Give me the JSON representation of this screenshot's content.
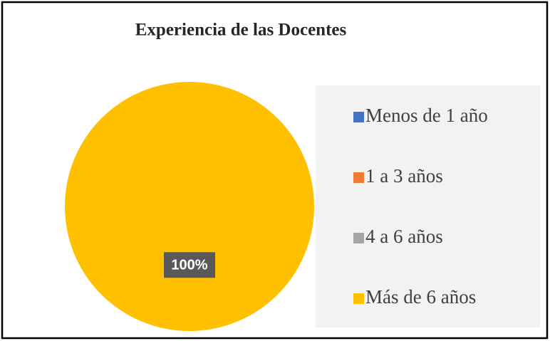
{
  "chart_data": {
    "type": "pie",
    "title": "Experiencia de las Docentes",
    "categories": [
      "Menos de 1 año",
      "1 a 3 años",
      "4 a 6 años",
      "Más de 6 años"
    ],
    "values": [
      0,
      0,
      0,
      100
    ],
    "value_labels": [
      null,
      null,
      null,
      "100%"
    ],
    "colors": [
      "#4472c4",
      "#ed7d31",
      "#a5a5a5",
      "#ffc000"
    ],
    "legend": "right"
  }
}
